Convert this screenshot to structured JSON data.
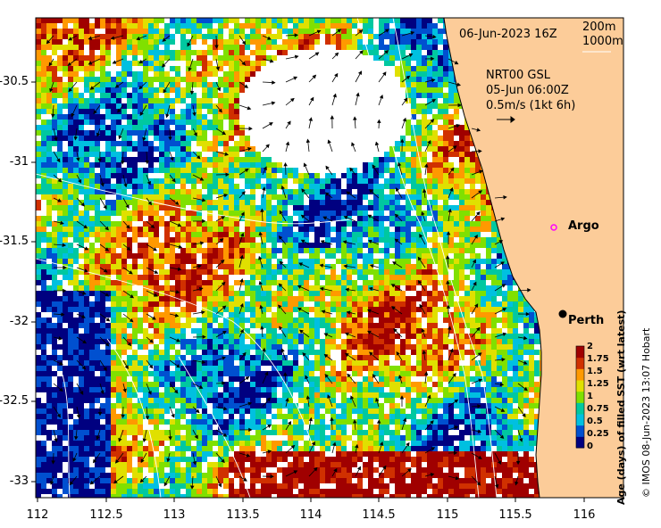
{
  "header": {
    "datetime": "06-Jun-2023 16Z",
    "depth_contours": [
      "200m",
      "1000m"
    ]
  },
  "current_info": {
    "lines": [
      "NRT00 GSL",
      "05-Jun 06:00Z",
      "0.5m/s (1kt 6h)"
    ]
  },
  "places": {
    "argo": "Argo",
    "perth": "Perth"
  },
  "axes": {
    "y_ticks": [
      "-30.5",
      "-31",
      "-31.5",
      "-32",
      "-32.5",
      "-33"
    ],
    "x_ticks": [
      "112",
      "112.5",
      "113",
      "113.5",
      "114",
      "114.5",
      "115",
      "115.5",
      "116"
    ]
  },
  "colorbar": {
    "title": "Age (days) of filled SST (wrt latest)",
    "ticks": [
      "2",
      "1.75",
      "1.5",
      "1.25",
      "1",
      "0.75",
      "0.5",
      "0.25",
      "0"
    ],
    "colors": [
      "#000080",
      "#0050d0",
      "#00c0e0",
      "#00c8a0",
      "#80e000",
      "#e0e000",
      "#ff9900",
      "#d03000",
      "#a00000"
    ]
  },
  "credit": "© IMOS 08-Jun-2023 13:07 Hobart",
  "colors": {
    "land": "#fccc99",
    "coast": "#000000",
    "contour": "#ffffff",
    "argo_marker": "#ff00ff"
  }
}
